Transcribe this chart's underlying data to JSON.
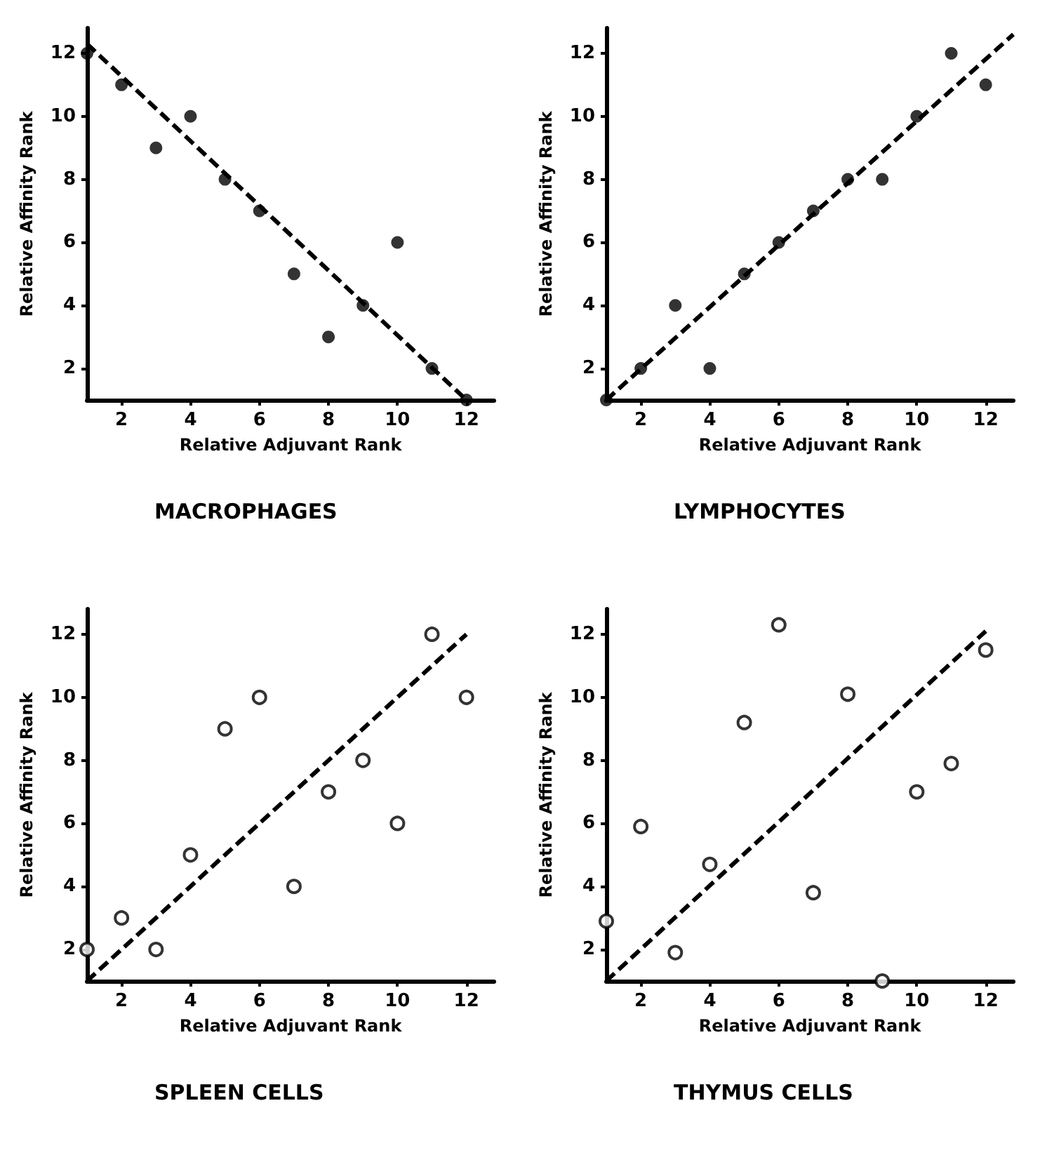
{
  "chart_data": [
    {
      "type": "scatter",
      "title": "MACROPHAGES",
      "xlabel": "Relative Adjuvant Rank",
      "ylabel": "Relative Affinity Rank",
      "xlim": [
        1,
        12.8
      ],
      "ylim": [
        1,
        12.8
      ],
      "xticks": [
        2,
        4,
        6,
        8,
        10,
        12
      ],
      "yticks": [
        2,
        4,
        6,
        8,
        10,
        12
      ],
      "series": [
        {
          "marker": "circle",
          "color": "#000000",
          "x": [
            1,
            2,
            3,
            4,
            5,
            6,
            7,
            8,
            9,
            10,
            11,
            12
          ],
          "values": [
            12,
            11,
            9,
            10,
            8,
            7,
            5,
            3,
            4,
            6,
            2,
            1
          ]
        },
        {
          "type": "line",
          "marker": "none",
          "line_style": "dashed",
          "color": "#000000",
          "x": [
            1,
            12
          ],
          "values": [
            12.3,
            1
          ]
        }
      ]
    },
    {
      "type": "scatter",
      "title": "LYMPHOCYTES",
      "xlabel": "Relative Adjuvant Rank",
      "ylabel": "Relative Affinity Rank",
      "xlim": [
        1,
        12.8
      ],
      "ylim": [
        1,
        12.8
      ],
      "xticks": [
        2,
        4,
        6,
        8,
        10,
        12
      ],
      "yticks": [
        2,
        4,
        6,
        8,
        10,
        12
      ],
      "series": [
        {
          "marker": "circle",
          "color": "#000000",
          "x": [
            1,
            2,
            3,
            4,
            5,
            6,
            7,
            8,
            9,
            10,
            11,
            12
          ],
          "values": [
            1,
            2,
            4,
            2,
            5,
            6,
            7,
            8,
            8,
            10,
            12,
            11
          ]
        },
        {
          "type": "line",
          "marker": "none",
          "line_style": "dashed",
          "color": "#000000",
          "x": [
            1,
            12.8
          ],
          "values": [
            1,
            12.6
          ]
        }
      ]
    },
    {
      "type": "scatter",
      "title": "SPLEEN CELLS",
      "xlabel": "Relative Adjuvant Rank",
      "ylabel": "Relative Affinity Rank",
      "xlim": [
        1,
        12.8
      ],
      "ylim": [
        1,
        12.8
      ],
      "xticks": [
        2,
        4,
        6,
        8,
        10,
        12
      ],
      "yticks": [
        2,
        4,
        6,
        8,
        10,
        12
      ],
      "series": [
        {
          "marker": "open_circle",
          "color": "#000000",
          "x": [
            1,
            2,
            3,
            4,
            5,
            6,
            7,
            8,
            9,
            10,
            11,
            12
          ],
          "values": [
            2,
            3,
            2,
            5,
            9,
            10,
            4,
            7,
            8,
            6,
            12,
            10
          ]
        },
        {
          "type": "line",
          "marker": "none",
          "line_style": "dashed",
          "color": "#000000",
          "x": [
            1,
            12
          ],
          "values": [
            1,
            12
          ]
        }
      ]
    },
    {
      "type": "scatter",
      "title": "THYMUS CELLS",
      "xlabel": "Relative Adjuvant Rank",
      "ylabel": "Relative Affinity Rank",
      "xlim": [
        1,
        12.8
      ],
      "ylim": [
        1,
        12.8
      ],
      "xticks": [
        2,
        4,
        6,
        8,
        10,
        12
      ],
      "yticks": [
        2,
        4,
        6,
        8,
        10,
        12
      ],
      "series": [
        {
          "marker": "open_circle",
          "color": "#000000",
          "x": [
            1,
            2,
            3,
            4,
            5,
            6,
            7,
            8,
            9,
            10,
            11,
            12
          ],
          "values": [
            2.9,
            5.9,
            1.9,
            4.7,
            9.2,
            12.3,
            3.8,
            10.1,
            1,
            7,
            7.9,
            11.5
          ]
        },
        {
          "type": "line",
          "marker": "none",
          "line_style": "dashed",
          "color": "#000000",
          "x": [
            1,
            12
          ],
          "values": [
            1,
            12.1
          ]
        }
      ]
    }
  ]
}
